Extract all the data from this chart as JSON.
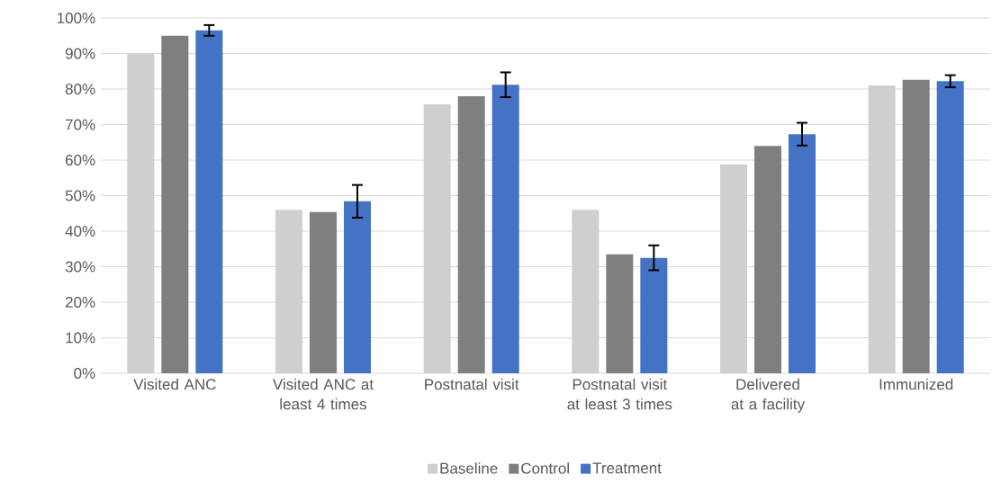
{
  "chart_data": {
    "type": "bar",
    "categories": [
      "Visited ANC",
      "Visited ANC at least 4 times",
      "Postnatal visit",
      "Postnatal visit at least 3 times",
      "Delivered at a facility",
      "Immunized"
    ],
    "series": [
      {
        "name": "Baseline",
        "color": "#d0cece",
        "values": [
          90,
          46,
          75.7,
          46,
          58.8,
          81
        ]
      },
      {
        "name": "Control",
        "color": "#7f7f7f",
        "values": [
          95,
          45.4,
          78,
          33.5,
          64,
          82.6
        ]
      },
      {
        "name": "Treatment",
        "color": "#4472c4",
        "values": [
          96.5,
          48.4,
          81.2,
          32.5,
          67.3,
          82.2
        ],
        "errors": [
          1.5,
          4.6,
          3.5,
          3.5,
          3.2,
          1.7
        ]
      }
    ],
    "ylim": [
      0,
      100
    ],
    "yticks": [
      {
        "value": 0,
        "label": "0%"
      },
      {
        "value": 10,
        "label": "10%"
      },
      {
        "value": 20,
        "label": "20%"
      },
      {
        "value": 30,
        "label": "30%"
      },
      {
        "value": 40,
        "label": "40%"
      },
      {
        "value": 50,
        "label": "50%"
      },
      {
        "value": 60,
        "label": "60%"
      },
      {
        "value": 70,
        "label": "70%"
      },
      {
        "value": 80,
        "label": "80%"
      },
      {
        "value": 90,
        "label": "90%"
      },
      {
        "value": 100,
        "label": "100%"
      }
    ],
    "grid": "y",
    "legend": "bottom"
  }
}
